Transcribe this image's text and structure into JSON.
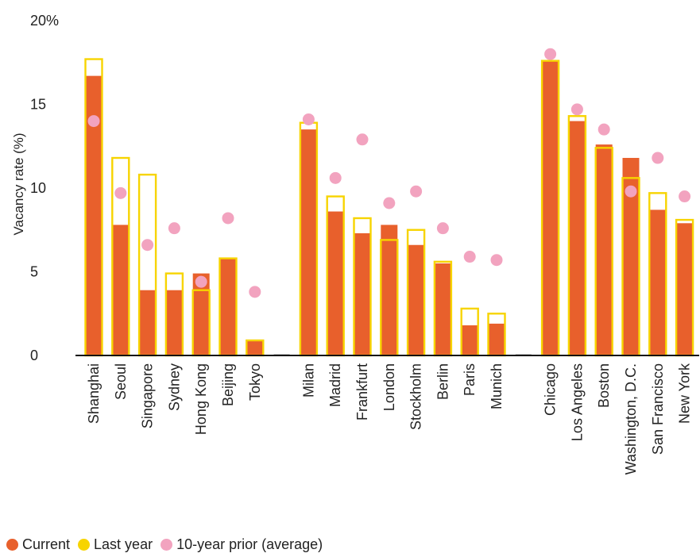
{
  "chart_data": {
    "type": "bar",
    "title": "",
    "xlabel": "",
    "ylabel": "Vacancy rate (%)",
    "ylim": [
      0,
      20
    ],
    "yticks": [
      0,
      5,
      10,
      15,
      20
    ],
    "ytick_labels": [
      "0",
      "5",
      "10",
      "15",
      "20%"
    ],
    "grid": false,
    "legend_position": "bottom-left",
    "colors": {
      "current": "#E8602C",
      "last_year": "#F7D400",
      "ten_year": "#F2A3BF"
    },
    "categories": [
      "Shanghai",
      "Seoul",
      "Singapore",
      "Sydney",
      "Hong Kong",
      "Beijing",
      "Tokyo",
      "",
      "Milan",
      "Madrid",
      "Frankfurt",
      "London",
      "Stockholm",
      "Berlin",
      "Paris",
      "Munich",
      "",
      "Chicago",
      "Los Angeles",
      "Boston",
      "Washington, D.C.",
      "San Francisco",
      "New York"
    ],
    "series": [
      {
        "name": "Current",
        "values": [
          16.7,
          7.8,
          3.9,
          3.9,
          4.9,
          5.8,
          0.9,
          null,
          13.5,
          8.6,
          7.3,
          7.8,
          6.6,
          5.5,
          1.8,
          1.9,
          null,
          17.6,
          14.0,
          12.6,
          11.8,
          8.7,
          7.9
        ]
      },
      {
        "name": "Last year",
        "values": [
          17.7,
          11.8,
          10.8,
          4.9,
          3.9,
          5.8,
          0.9,
          null,
          13.9,
          9.5,
          8.2,
          6.9,
          7.5,
          5.6,
          2.8,
          2.5,
          null,
          17.6,
          14.3,
          12.4,
          10.6,
          9.7,
          8.1
        ]
      },
      {
        "name": "10-year prior (average)",
        "values": [
          14.0,
          9.7,
          6.6,
          7.6,
          4.4,
          8.2,
          3.8,
          null,
          14.1,
          10.6,
          12.9,
          9.1,
          9.8,
          7.6,
          5.9,
          5.7,
          null,
          18.0,
          14.7,
          13.5,
          9.8,
          11.8,
          9.5
        ]
      }
    ]
  }
}
